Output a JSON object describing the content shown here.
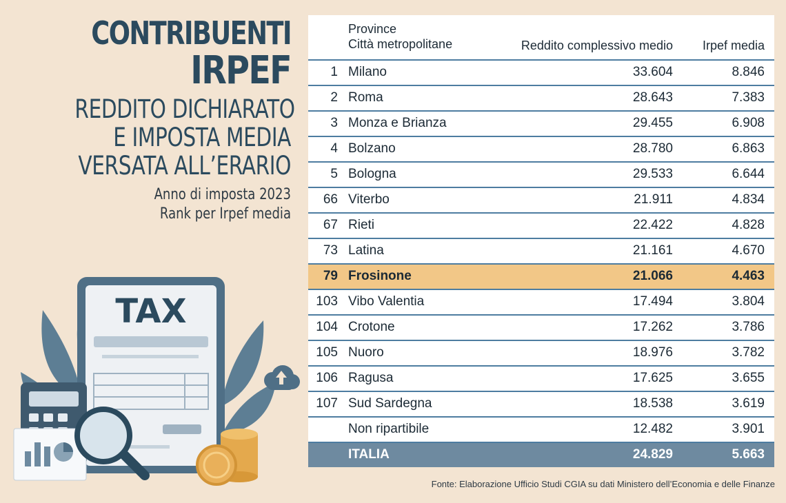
{
  "title": {
    "line1": "CONTRIBUENTI",
    "line2": "IRPEF",
    "subtitle_lines": [
      "REDDITO DICHIARATO",
      "E IMPOSTA MEDIA",
      "VERSATA ALL’ERARIO"
    ],
    "note_lines": [
      "Anno di imposta 2023",
      "Rank per Irpef media"
    ]
  },
  "illustration": {
    "tax_label": "TAX",
    "icons": [
      "document-icon",
      "calculator-icon",
      "magnifier-icon",
      "coins-icon",
      "cloud-upload-icon",
      "plant-leaves-icon",
      "report-chart-icon"
    ]
  },
  "colors": {
    "background": "#f3e4d2",
    "title": "#2b4a5e",
    "row_rule": "#4d7ca0",
    "highlight_row": "#f2c787",
    "total_row": "#6e8aa0"
  },
  "source": "Fonte: Elaborazione Ufficio Studi CGIA su dati Ministero dell’Economia e delle Finanze",
  "chart_data": {
    "type": "table",
    "columns": [
      "",
      "Province\nCittà metropolitane",
      "Reddito complessivo medio",
      "Irpef media"
    ],
    "header": {
      "province_line1": "Province",
      "province_line2": "Città metropolitane",
      "reddito": "Reddito complessivo medio",
      "irpef": "Irpef media"
    },
    "rows": [
      {
        "rank": "1",
        "name": "Milano",
        "reddito": "33.604",
        "irpef": "8.846"
      },
      {
        "rank": "2",
        "name": "Roma",
        "reddito": "28.643",
        "irpef": "7.383"
      },
      {
        "rank": "3",
        "name": "Monza e Brianza",
        "reddito": "29.455",
        "irpef": "6.908"
      },
      {
        "rank": "4",
        "name": "Bolzano",
        "reddito": "28.780",
        "irpef": "6.863"
      },
      {
        "rank": "5",
        "name": "Bologna",
        "reddito": "29.533",
        "irpef": "6.644"
      },
      {
        "rank": "66",
        "name": "Viterbo",
        "reddito": "21.911",
        "irpef": "4.834"
      },
      {
        "rank": "67",
        "name": "Rieti",
        "reddito": "22.422",
        "irpef": "4.828"
      },
      {
        "rank": "73",
        "name": "Latina",
        "reddito": "21.161",
        "irpef": "4.670"
      },
      {
        "rank": "79",
        "name": "Frosinone",
        "reddito": "21.066",
        "irpef": "4.463",
        "highlight": true
      },
      {
        "rank": "103",
        "name": "Vibo Valentia",
        "reddito": "17.494",
        "irpef": "3.804"
      },
      {
        "rank": "104",
        "name": "Crotone",
        "reddito": "17.262",
        "irpef": "3.786"
      },
      {
        "rank": "105",
        "name": "Nuoro",
        "reddito": "18.976",
        "irpef": "3.782"
      },
      {
        "rank": "106",
        "name": "Ragusa",
        "reddito": "17.625",
        "irpef": "3.655"
      },
      {
        "rank": "107",
        "name": "Sud Sardegna",
        "reddito": "18.538",
        "irpef": "3.619"
      },
      {
        "rank": "",
        "name": "Non ripartibile",
        "reddito": "12.482",
        "irpef": "3.901"
      },
      {
        "rank": "",
        "name": "ITALIA",
        "reddito": "24.829",
        "irpef": "5.663",
        "total": true
      }
    ]
  }
}
